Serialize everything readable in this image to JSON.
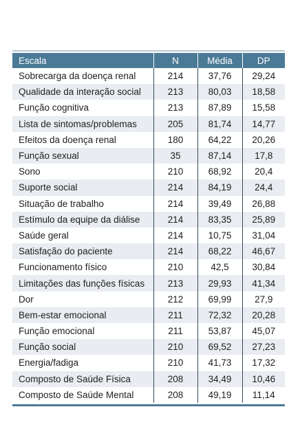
{
  "table": {
    "headers": {
      "scale": "Escala",
      "n": "N",
      "mean": "Média",
      "sd": "DP"
    },
    "rows": [
      {
        "scale": "Sobrecarga da doença renal",
        "n": "214",
        "mean": "37,76",
        "sd": "29,24"
      },
      {
        "scale": "Qualidade da interação social",
        "n": "213",
        "mean": "80,03",
        "sd": "18,58"
      },
      {
        "scale": "Função cognitiva",
        "n": "213",
        "mean": "87,89",
        "sd": "15,58"
      },
      {
        "scale": "Lista de sintomas/problemas",
        "n": "205",
        "mean": "81,74",
        "sd": "14,77"
      },
      {
        "scale": "Efeitos da doença renal",
        "n": "180",
        "mean": "64,22",
        "sd": "20,26"
      },
      {
        "scale": "Função sexual",
        "n": "35",
        "mean": "87,14",
        "sd": "17,8"
      },
      {
        "scale": "Sono",
        "n": "210",
        "mean": "68,92",
        "sd": "20,4"
      },
      {
        "scale": "Suporte social",
        "n": "214",
        "mean": "84,19",
        "sd": "24,4"
      },
      {
        "scale": "Situação de trabalho",
        "n": "214",
        "mean": "39,49",
        "sd": "26,88"
      },
      {
        "scale": "Estímulo da equipe da diálise",
        "n": "214",
        "mean": "83,35",
        "sd": "25,89"
      },
      {
        "scale": "Saúde geral",
        "n": "214",
        "mean": "10,75",
        "sd": "31,04"
      },
      {
        "scale": "Satisfação do paciente",
        "n": "214",
        "mean": "68,22",
        "sd": "46,67"
      },
      {
        "scale": "Funcionamento físico",
        "n": "210",
        "mean": "42,5",
        "sd": "30,84"
      },
      {
        "scale": "Limitações das funções físicas",
        "n": "213",
        "mean": "29,93",
        "sd": "41,34"
      },
      {
        "scale": "Dor",
        "n": "212",
        "mean": "69,99",
        "sd": "27,9"
      },
      {
        "scale": "Bem-estar emocional",
        "n": "211",
        "mean": "72,32",
        "sd": "20,28"
      },
      {
        "scale": "Função emocional",
        "n": "211",
        "mean": "53,87",
        "sd": "45,07"
      },
      {
        "scale": "Função social",
        "n": "210",
        "mean": "69,52",
        "sd": "27,23"
      },
      {
        "scale": "Energia/fadiga",
        "n": "210",
        "mean": "41,73",
        "sd": "17,32"
      },
      {
        "scale": "Composto de Saúde Física",
        "n": "208",
        "mean": "34,49",
        "sd": "10,46"
      },
      {
        "scale": "Composto de Saúde Mental",
        "n": "208",
        "mean": "49,19",
        "sd": "11,14"
      }
    ]
  },
  "colors": {
    "header_bg": "#4a7a96",
    "stripe_bg": "#e9edf1",
    "rule": "#b9c6d0"
  }
}
